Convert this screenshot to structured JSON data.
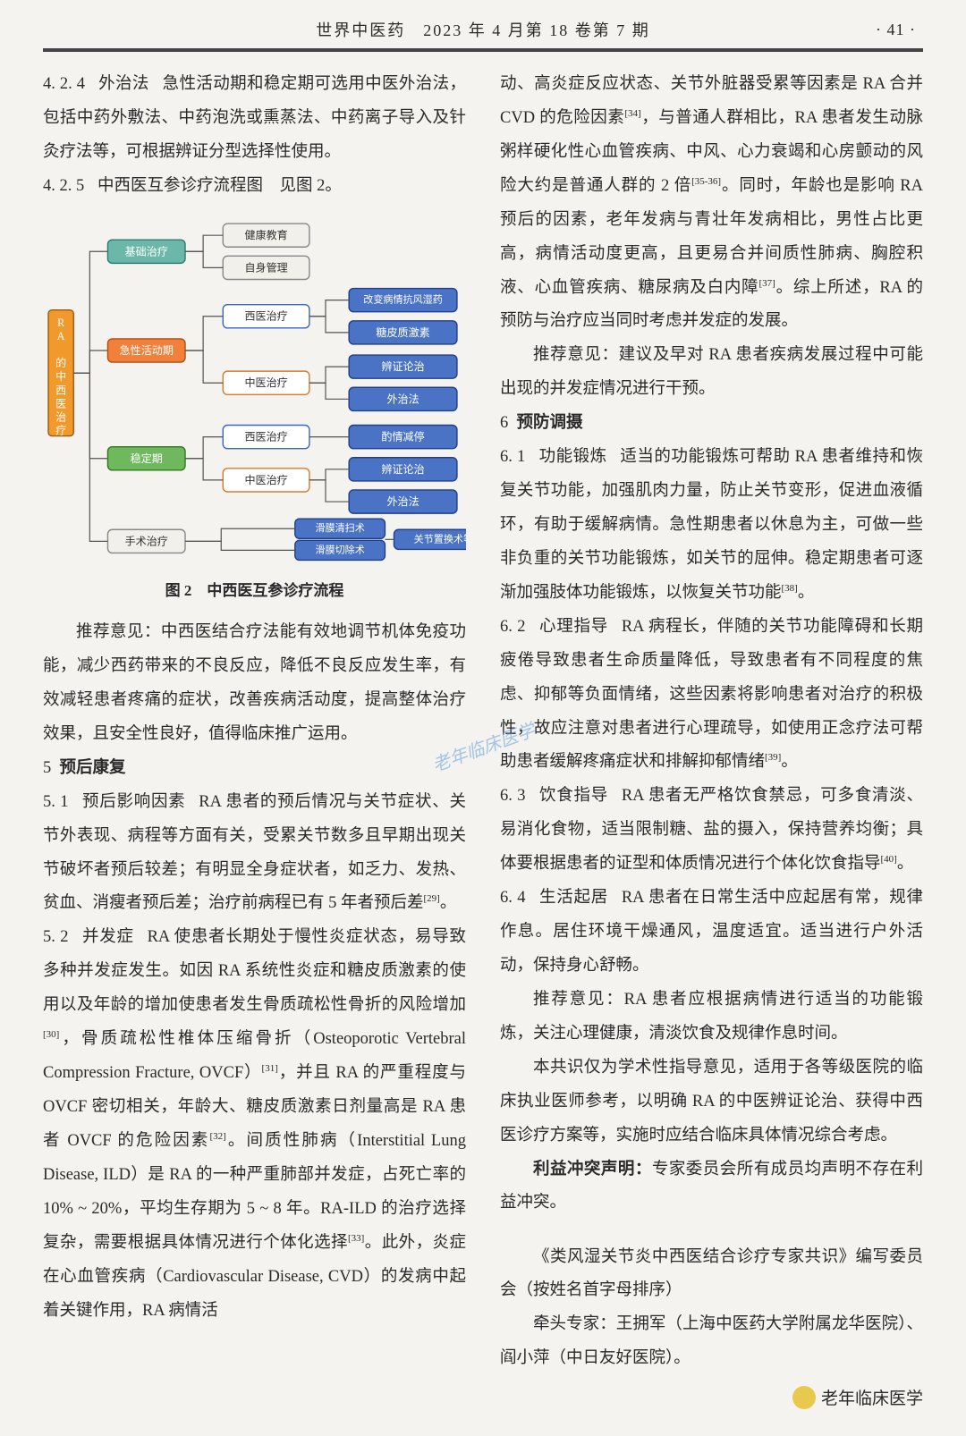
{
  "header": {
    "journal": "世界中医药　2023 年 4 月第 18 卷第 7 期",
    "page": "· 41 ·"
  },
  "left": {
    "s424_num": "4. 2. 4",
    "s424_ttl": "外治法",
    "s424_txt": "急性活动期和稳定期可选用中医外治法，包括中药外敷法、中药泡洗或熏蒸法、中药离子导入及针灸疗法等，可根据辨证分型选择性使用。",
    "s425_num": "4. 2. 5",
    "s425_ttl": "中西医互参诊疗流程图　见图 2。",
    "figcap": "图 2　中西医互参诊疗流程",
    "rec1": "推荐意见：中西医结合疗法能有效地调节机体免疫功能，减少西药带来的不良反应，降低不良反应发生率，有效减轻患者疼痛的症状，改善疾病活动度，提高整体治疗效果，且安全性良好，值得临床推广运用。",
    "s5_num": "5",
    "s5_ttl": "预后康复",
    "s51_num": "5. 1",
    "s51_ttl": "预后影响因素",
    "s51_txt": "RA 患者的预后情况与关节症状、关节外表现、病程等方面有关，受累关节数多且早期出现关节破坏者预后较差；有明显全身症状者，如乏力、发热、贫血、消瘦者预后差；治疗前病程已有 5 年者预后差",
    "s51_ref": "[29]",
    "s52_num": "5. 2",
    "s52_ttl": "并发症",
    "s52_p1a": "RA 使患者长期处于慢性炎症状态，易导致多种并发症发生。如因 RA 系统性炎症和糖皮质激素的使用以及年龄的增加使患者发生骨质疏松性骨折的风险增加",
    "s52_r30": "[30]",
    "s52_p1b": "，骨质疏松性椎体压缩骨折（Osteoporotic Vertebral Compression Fracture, OVCF）",
    "s52_r31": "[31]",
    "s52_p1c": "，并且 RA 的严重程度与 OVCF 密切相关，年龄大、糖皮质激素日剂量高是 RA 患者 OVCF 的危险因素",
    "s52_r32": "[32]",
    "s52_p1d": "。间质性肺病（Interstitial Lung Disease, ILD）是 RA 的一种严重肺部并发症，占死亡率的 10% ~ 20%，平均生存期为 5 ~ 8 年。RA-ILD 的治疗选择复杂，需要根据具体情况进行个体化选择",
    "s52_r33": "[33]",
    "s52_p1e": "。此外，炎症在心血管疾病（Cardiovascular Disease, CVD）的发病中起着关键作用，RA 病情活"
  },
  "right": {
    "cont_a": "动、高炎症反应状态、关节外脏器受累等因素是 RA 合并 CVD 的危险因素",
    "r34": "[34]",
    "cont_b": "，与普通人群相比，RA 患者发生动脉粥样硬化性心血管疾病、中风、心力衰竭和心房颤动的风险大约是普通人群的 2 倍",
    "r3536": "[35-36]",
    "cont_c": "。同时，年龄也是影响 RA 预后的因素，老年发病与青壮年发病相比，男性占比更高，病情活动度更高，且更易合并间质性肺病、胸腔积液、心血管疾病、糖尿病及白内障",
    "r37": "[37]",
    "cont_d": "。综上所述，RA 的预防与治疗应当同时考虑并发症的发展。",
    "rec2": "推荐意见：建议及早对 RA 患者疾病发展过程中可能出现的并发症情况进行干预。",
    "s6_num": "6",
    "s6_ttl": "预防调摄",
    "s61_num": "6. 1",
    "s61_ttl": "功能锻炼",
    "s61_txt": "适当的功能锻炼可帮助 RA 患者维持和恢复关节功能，加强肌肉力量，防止关节变形，促进血液循环，有助于缓解病情。急性期患者以休息为主，可做一些非负重的关节功能锻炼，如关节的屈伸。稳定期患者可逐渐加强肢体功能锻炼，以恢复关节功能",
    "r38": "[38]",
    "s62_num": "6. 2",
    "s62_ttl": "心理指导",
    "s62_txt": "RA 病程长，伴随的关节功能障碍和长期疲倦导致患者生命质量降低，导致患者有不同程度的焦虑、抑郁等负面情绪，这些因素将影响患者对治疗的积极性，故应注意对患者进行心理疏导，如使用正念疗法可帮助患者缓解疼痛症状和排解抑郁情绪",
    "r39": "[39]",
    "s63_num": "6. 3",
    "s63_ttl": "饮食指导",
    "s63_txt": "RA 患者无严格饮食禁忌，可多食清淡、易消化食物，适当限制糖、盐的摄入，保持营养均衡；具体要根据患者的证型和体质情况进行个体化饮食指导",
    "r40": "[40]",
    "s64_num": "6. 4",
    "s64_ttl": "生活起居",
    "s64_txt": "RA 患者在日常生活中应起居有常，规律作息。居住环境干燥通风，温度适宜。适当进行户外活动，保持身心舒畅。",
    "rec3": "推荐意见：RA 患者应根据病情进行适当的功能锻炼，关注心理健康，清淡饮食及规律作息时间。",
    "note1": "本共识仅为学术性指导意见，适用于各等级医院的临床执业医师参考，以明确 RA 的中医辨证论治、获得中西医诊疗方案等，实施时应结合临床具体情况综合考虑。",
    "coi_lbl": "利益冲突声明：",
    "coi_txt": "专家委员会所有成员均声明不存在利益冲突。",
    "editorial": "《类风湿关节炎中西医结合诊疗专家共识》编写委员会（按姓名首字母排序）",
    "leads": "牵头专家：王拥军（上海中医药大学附属龙华医院）、阎小萍（中日友好医院）。"
  },
  "flow": {
    "root": "RA 的中西医治疗",
    "phase1": "基础治疗",
    "p1a": "健康教育",
    "p1b": "自身管理",
    "phase2": "急性活动期",
    "p2w": "西医治疗",
    "p2c": "中医治疗",
    "p2w1": "改变病情抗风湿药",
    "p2w2": "糖皮质激素",
    "p2c1": "辨证论治",
    "p2c2": "外治法",
    "phase3": "稳定期",
    "p3w": "西医治疗",
    "p3c": "中医治疗",
    "p3w1": "酌情减停",
    "p3c1": "辨证论治",
    "p3c2": "外治法",
    "phase4": "手术治疗",
    "p4a": "滑膜清扫术",
    "p4b": "滑膜切除术",
    "p4c": "关节置换术等",
    "colors": {
      "root": "#f19a2b",
      "root_border": "#9d5a0c",
      "phase_teal": "#6bb8aa",
      "phase_teal_bd": "#2a7d6f",
      "phase_orange": "#f0803a",
      "phase_orange_bd": "#b54d0e",
      "phase_green": "#6fb85e",
      "phase_green_bd": "#2f7a1f",
      "gray_fill": "#f2f0ea",
      "gray_bd": "#888",
      "white_bd_blue": "#3a66c2",
      "white_bd_or": "#d87a2e",
      "blue": "#4a73c6",
      "blue_bd": "#1f3f8a",
      "line": "#555",
      "text_light": "#fff",
      "text_dark": "#333"
    }
  },
  "watermark": "老年临床医学"
}
